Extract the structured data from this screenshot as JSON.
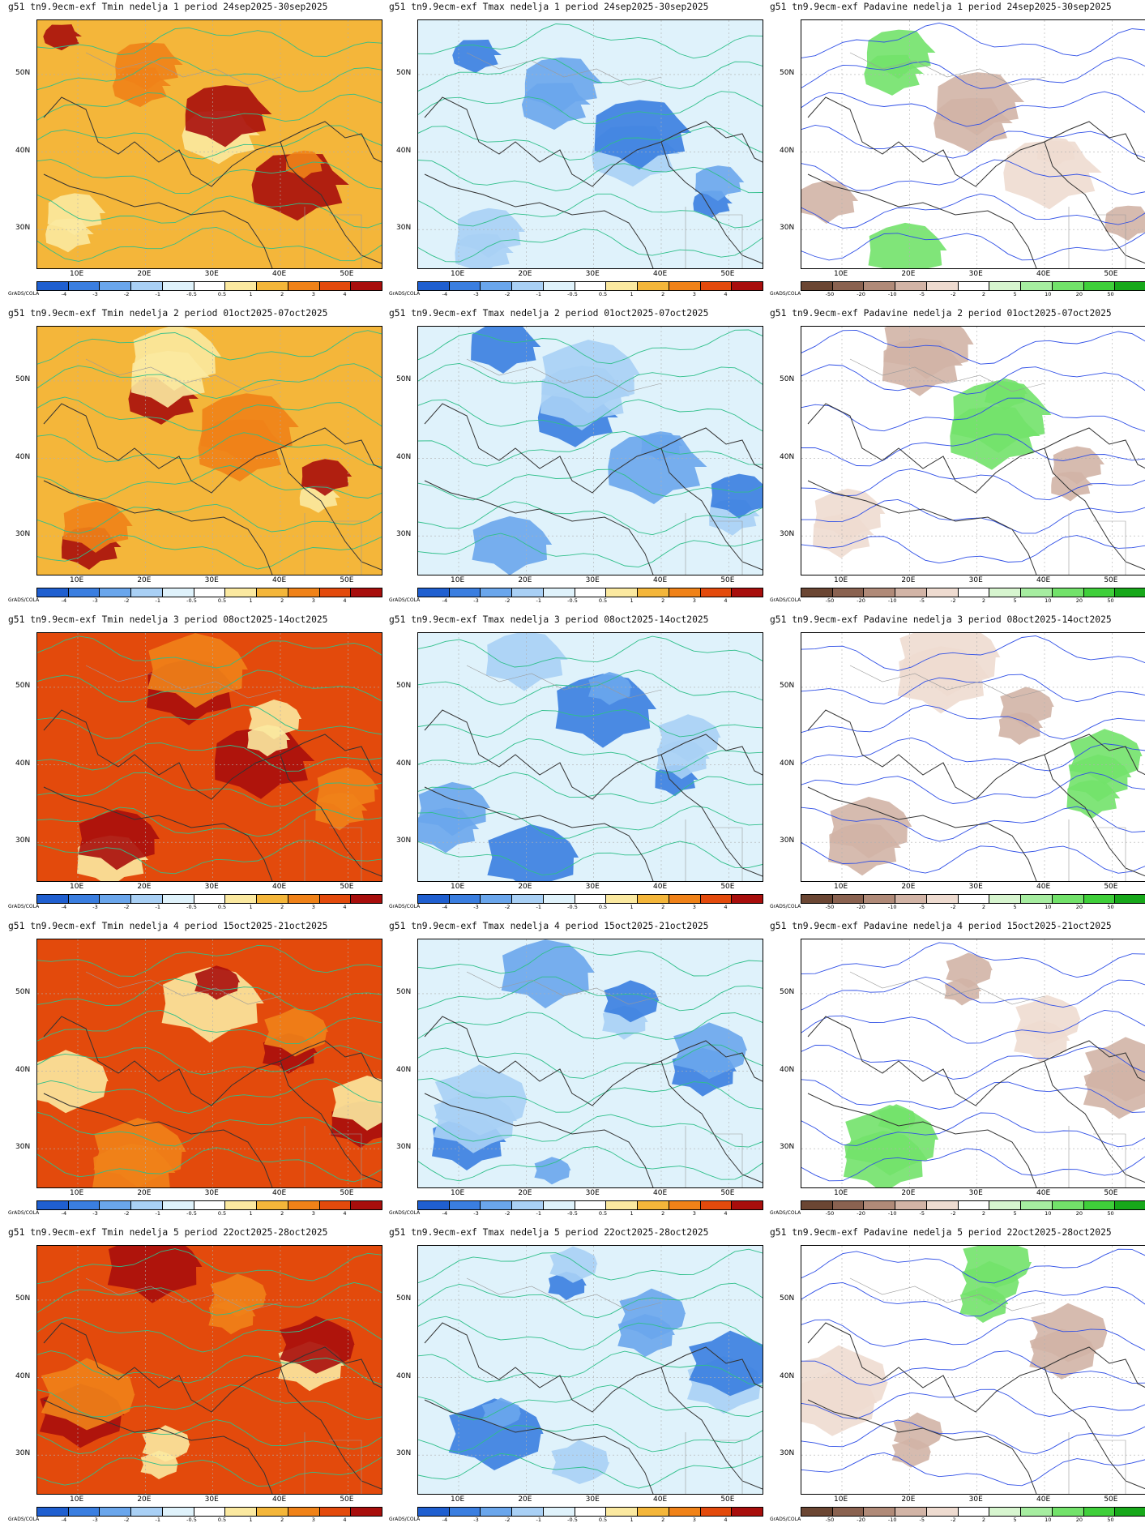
{
  "credit": "GrADS/COLA",
  "columns": [
    {
      "variable": "Tmin",
      "colorbar": {
        "labels": [
          "-4",
          "-3",
          "-2",
          "-1",
          "-0.5",
          "0.5",
          "1",
          "2",
          "3",
          "4"
        ],
        "colors": [
          "#1f5fd0",
          "#3a7ee0",
          "#6aa6ec",
          "#a9d0f5",
          "#dff2fb",
          "#ffffff",
          "#fbe9a0",
          "#f4b63a",
          "#f08218",
          "#e34a0c",
          "#a80e0c"
        ]
      }
    },
    {
      "variable": "Tmax",
      "colorbar": {
        "labels": [
          "-4",
          "-3",
          "-2",
          "-1",
          "-0.5",
          "0.5",
          "1",
          "2",
          "3",
          "4"
        ],
        "colors": [
          "#1f5fd0",
          "#3a7ee0",
          "#6aa6ec",
          "#a9d0f5",
          "#dff2fb",
          "#ffffff",
          "#fbe9a0",
          "#f4b63a",
          "#f08218",
          "#e34a0c",
          "#a80e0c"
        ]
      }
    },
    {
      "variable": "Padavine",
      "colorbar": {
        "labels": [
          "-50",
          "-20",
          "-10",
          "-5",
          "-2",
          "2",
          "5",
          "10",
          "20",
          "50"
        ],
        "colors": [
          "#6b4633",
          "#8a6250",
          "#b08a78",
          "#d2b4a6",
          "#eedbd0",
          "#ffffff",
          "#d7f5cf",
          "#a6eda0",
          "#72e26a",
          "#3fcf3a",
          "#17a81a"
        ]
      }
    }
  ],
  "lat_labels": [
    "50N",
    "40N",
    "30N"
  ],
  "lon_labels": [
    "10E",
    "20E",
    "30E",
    "40E",
    "50E"
  ],
  "panels": [
    {
      "title": "g51 tn9.9ecm-exf Tmin nedelja 1 period 24sep2025-30sep2025",
      "fill": "warm",
      "level": 0.35
    },
    {
      "title": "g51 tn9.9ecm-exf Tmax nedelja 1 period 24sep2025-30sep2025",
      "fill": "cool",
      "level": 0.55
    },
    {
      "title": "g51 tn9.9ecm-exf Padavine nedelja 1 period 24sep2025-30sep2025",
      "fill": "precip",
      "level": 0.5
    },
    {
      "title": "g51 tn9.9ecm-exf Tmin nedelja 2 period 01oct2025-07oct2025",
      "fill": "warm",
      "level": 0.25
    },
    {
      "title": "g51 tn9.9ecm-exf Tmax nedelja 2 period 01oct2025-07oct2025",
      "fill": "cool",
      "level": 0.6
    },
    {
      "title": "g51 tn9.9ecm-exf Padavine nedelja 2 period 01oct2025-07oct2025",
      "fill": "precip",
      "level": 0.3
    },
    {
      "title": "g51 tn9.9ecm-exf Tmin nedelja 3 period 08oct2025-14oct2025",
      "fill": "warm",
      "level": 0.6
    },
    {
      "title": "g51 tn9.9ecm-exf Tmax nedelja 3 period 08oct2025-14oct2025",
      "fill": "cool",
      "level": 0.35
    },
    {
      "title": "g51 tn9.9ecm-exf Padavine nedelja 3 period 08oct2025-14oct2025",
      "fill": "precip",
      "level": 0.4
    },
    {
      "title": "g51 tn9.9ecm-exf Tmin nedelja 4 period 15oct2025-21oct2025",
      "fill": "warm",
      "level": 0.7
    },
    {
      "title": "g51 tn9.9ecm-exf Tmax nedelja 4 period 15oct2025-21oct2025",
      "fill": "cool",
      "level": 0.3
    },
    {
      "title": "g51 tn9.9ecm-exf Padavine nedelja 4 period 15oct2025-21oct2025",
      "fill": "precip",
      "level": 0.3
    },
    {
      "title": "g51 tn9.9ecm-exf Tmin nedelja 5 period 22oct2025-28oct2025",
      "fill": "warm",
      "level": 0.8
    },
    {
      "title": "g51 tn9.9ecm-exf Tmax nedelja 5 period 22oct2025-28oct2025",
      "fill": "cool",
      "level": 0.25
    },
    {
      "title": "g51 tn9.9ecm-exf Padavine nedelja 5 period 22oct2025-28oct2025",
      "fill": "precip",
      "level": 0.35
    }
  ]
}
